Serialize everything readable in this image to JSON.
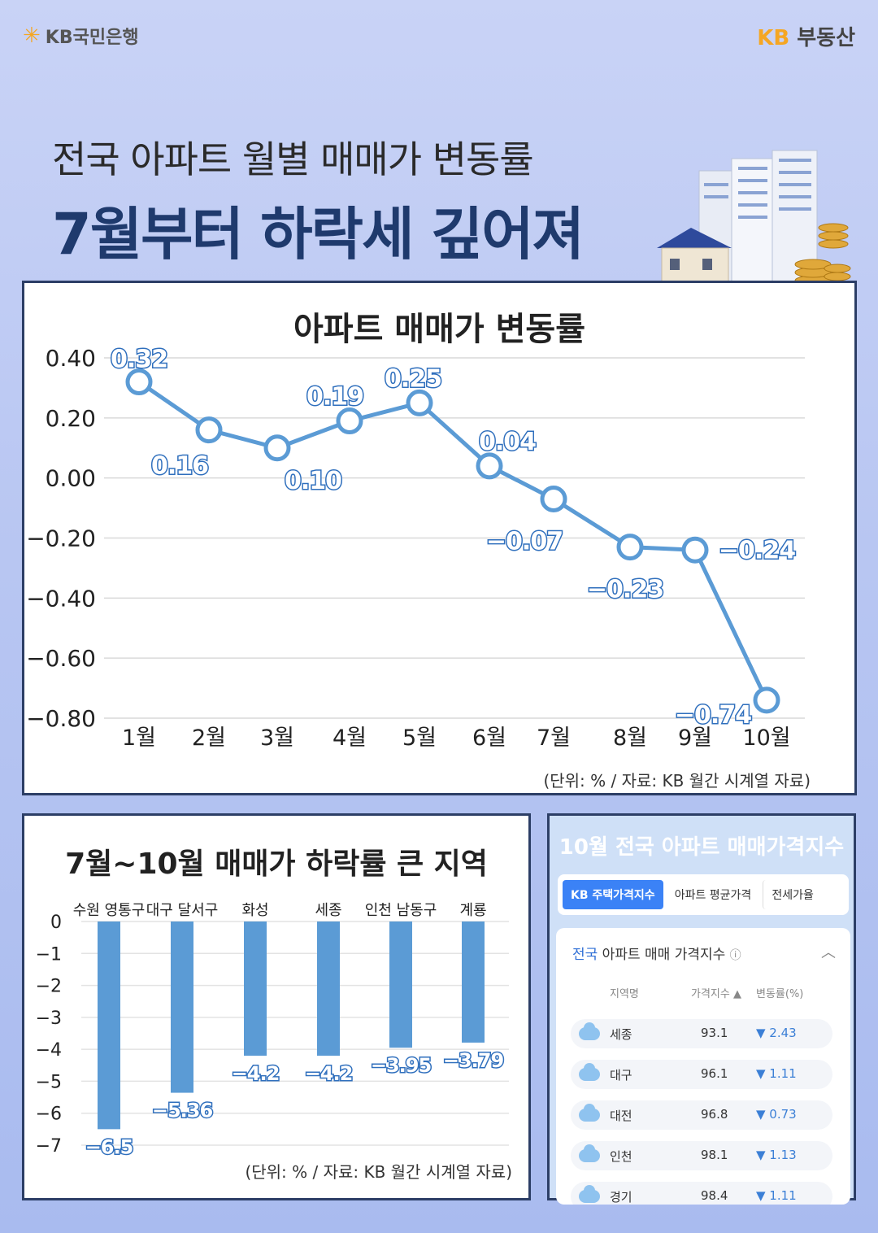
{
  "header": {
    "bank_logo_text": "KB국민은행",
    "realestate_brand_prefix": "KB",
    "realestate_brand_suffix": "부동산"
  },
  "headline": {
    "line1": "전국 아파트 월별 매매가 변동률",
    "line2": "7월부터 하락세 깊어져"
  },
  "chart_data": [
    {
      "type": "line",
      "title": "아파트 매매가 변동률",
      "categories": [
        "1월",
        "2월",
        "3월",
        "4월",
        "5월",
        "6월",
        "7월",
        "8월",
        "9월",
        "10월"
      ],
      "values": [
        0.32,
        0.16,
        0.1,
        0.19,
        0.25,
        0.04,
        -0.07,
        -0.23,
        -0.24,
        -0.74
      ],
      "data_labels": [
        "0.32",
        "0.16",
        "0.10",
        "0.19",
        "0.25",
        "0.04",
        "−0.07",
        "−0.23",
        "−0.24",
        "−0.74"
      ],
      "y_ticks": [
        "0.40",
        "0.20",
        "0.00",
        "−0.20",
        "−0.40",
        "−0.60",
        "−0.80"
      ],
      "ylim": [
        -0.8,
        0.4
      ],
      "grid": true,
      "color": "#5b9bd5",
      "note": "(단위: % / 자료: KB 월간 시계열 자료)"
    },
    {
      "type": "bar",
      "title": "7월~10월 매매가 하락률 큰 지역",
      "categories": [
        "수원 영통구",
        "대구 달서구",
        "화성",
        "세종",
        "인천 남동구",
        "계룡"
      ],
      "values": [
        -6.5,
        -5.36,
        -4.2,
        -4.2,
        -3.95,
        -3.79
      ],
      "data_labels": [
        "−6.5",
        "−5.36",
        "−4.2",
        "−4.2",
        "−3.95",
        "−3.79"
      ],
      "y_ticks": [
        "0",
        "−1",
        "−2",
        "−3",
        "−4",
        "−5",
        "−6",
        "−7"
      ],
      "ylim": [
        -7,
        0
      ],
      "grid": true,
      "color": "#5b9bd5",
      "note": "(단위: % / 자료: KB 월간 시계열 자료)"
    }
  ],
  "index_panel": {
    "title": "10월 전국 아파트 매매가격지수",
    "tabs": [
      "KB 주택가격지수",
      "아파트 평균가격",
      "전세가율"
    ],
    "card_title_prefix": "전국",
    "card_title_rest": " 아파트 매매 가격지수",
    "info_icon": "ⓘ",
    "collapse_icon": "︿",
    "columns": [
      "지역명",
      "가격지수 ▲",
      "변동률(%)"
    ],
    "rows": [
      {
        "region": "세종",
        "index": "93.1",
        "change": "▼ 2.43",
        "weather_icon": "rain-cloud-icon"
      },
      {
        "region": "대구",
        "index": "96.1",
        "change": "▼ 1.11",
        "weather_icon": "cloud-icon"
      },
      {
        "region": "대전",
        "index": "96.8",
        "change": "▼ 0.73",
        "weather_icon": "cloud-icon"
      },
      {
        "region": "인천",
        "index": "98.1",
        "change": "▼ 1.13",
        "weather_icon": "cloud-icon"
      },
      {
        "region": "경기",
        "index": "98.4",
        "change": "▼ 1.11",
        "weather_icon": "cloud-icon"
      }
    ]
  },
  "colors": {
    "panel_border": "#2c3e66",
    "headline_blue": "#1f3a6d",
    "kb_yellow": "#f5a623",
    "line_blue": "#5b9bd5",
    "tab_active": "#3b82f6"
  }
}
